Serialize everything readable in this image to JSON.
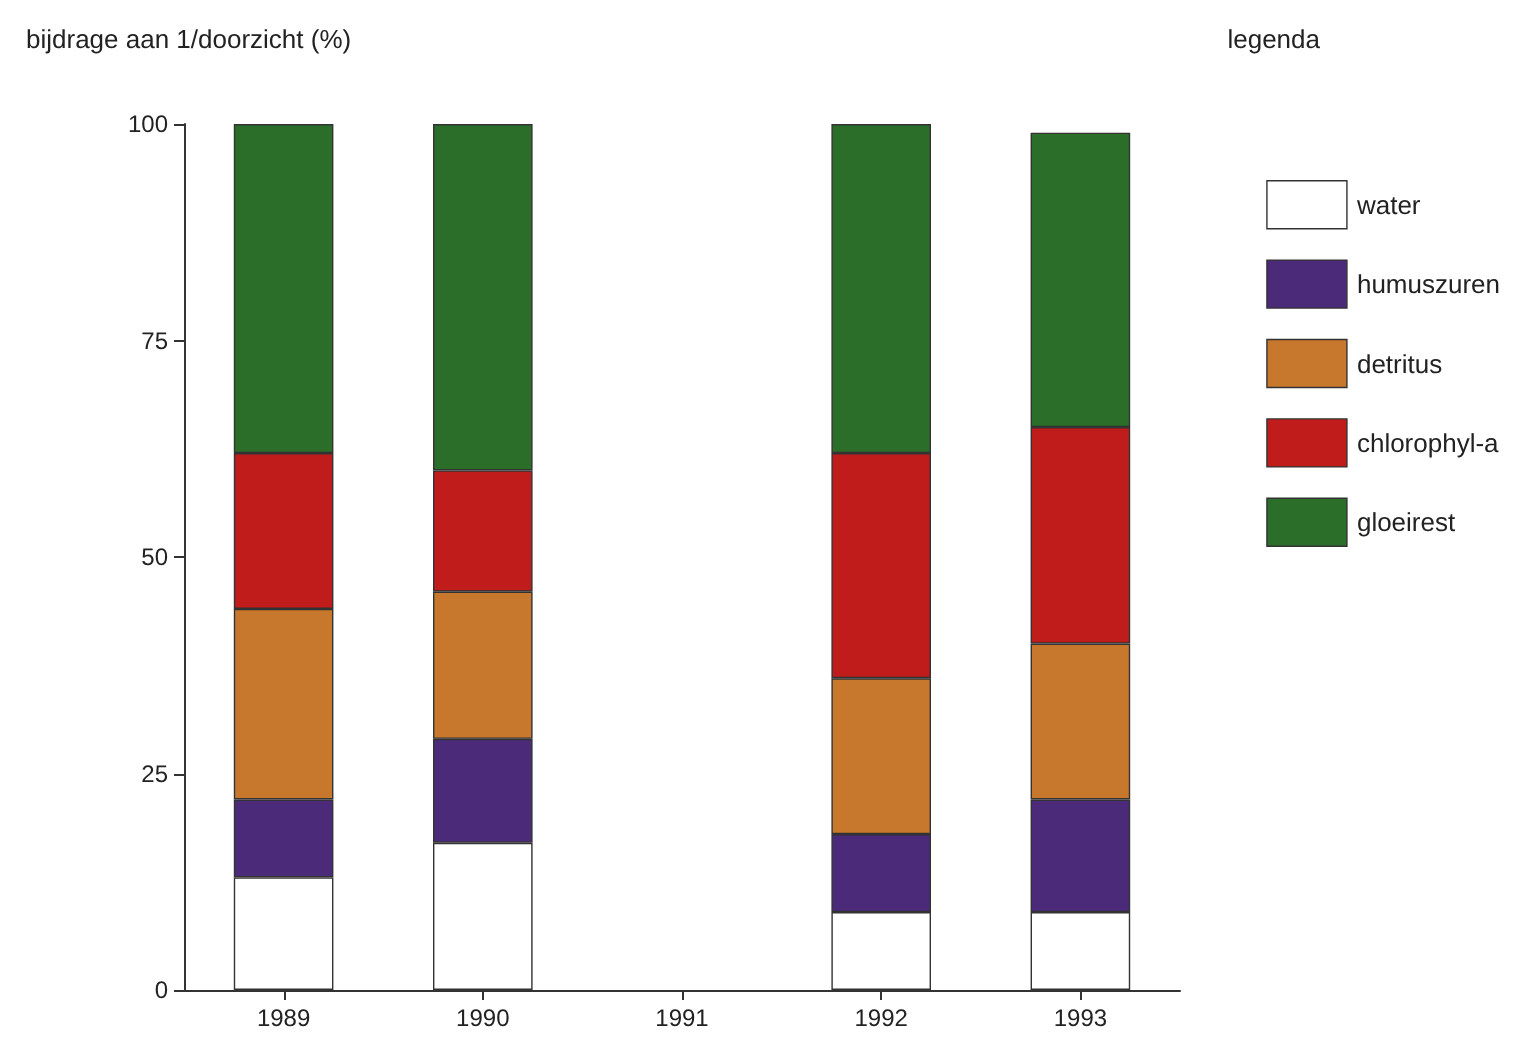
{
  "chart_data": {
    "type": "bar",
    "stacked": true,
    "ylabel": "bijdrage aan 1/doorzicht (%)",
    "legend_title": "legenda",
    "categories": [
      "1989",
      "1990",
      "1991",
      "1992",
      "1993"
    ],
    "series": [
      {
        "name": "water",
        "color": "#ffffff",
        "values": [
          13,
          17,
          null,
          9,
          9
        ]
      },
      {
        "name": "humuszuren",
        "color": "#4b2a7a",
        "values": [
          9,
          12,
          null,
          9,
          13
        ]
      },
      {
        "name": "detritus",
        "color": "#c8782c",
        "values": [
          22,
          17,
          null,
          18,
          18
        ]
      },
      {
        "name": "chlorophyl-a",
        "color": "#c01c1c",
        "values": [
          18,
          14,
          null,
          26,
          25
        ]
      },
      {
        "name": "gloeirest",
        "color": "#2a6e2a",
        "values": [
          38,
          40,
          null,
          38,
          34
        ]
      }
    ],
    "ylim": [
      0,
      100
    ],
    "yticks": [
      0,
      25,
      50,
      75,
      100
    ],
    "grid": false,
    "legend": "top right"
  }
}
